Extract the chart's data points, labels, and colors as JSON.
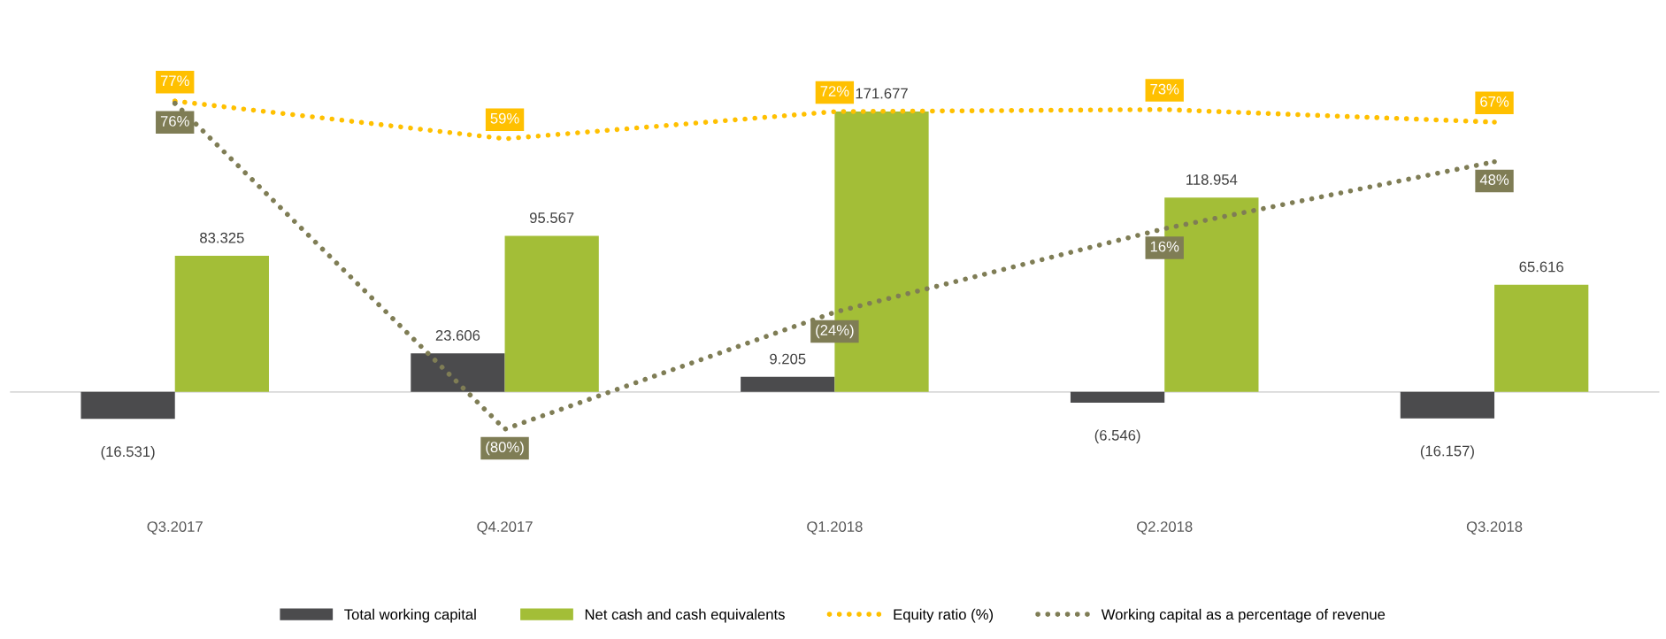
{
  "chart_data": {
    "type": "bar",
    "categories": [
      "Q3.2017",
      "Q4.2017",
      "Q1.2018",
      "Q2.2018",
      "Q3.2018"
    ],
    "series": [
      {
        "name": "Total working capital",
        "color": "#4b4b4d",
        "values": [
          -16.531,
          23.606,
          9.205,
          -6.546,
          -16.157
        ],
        "value_labels": [
          "(16.531)",
          "23.606",
          "9.205",
          "(6.546)",
          "(16.157)"
        ]
      },
      {
        "name": "Net cash and cash equivalents",
        "color": "#a3be37",
        "values": [
          83.325,
          95.567,
          171.677,
          118.954,
          65.616
        ],
        "value_labels": [
          "83.325",
          "95.567",
          "171.677",
          "118.954",
          "65.616"
        ]
      },
      {
        "name": "Equity ratio (%)",
        "type": "line",
        "axis": "y2",
        "line_style": "dotted",
        "color": "#ffc000",
        "values": [
          77,
          59,
          72,
          73,
          67
        ],
        "value_labels": [
          "77%",
          "59%",
          "72%",
          "73%",
          "67%"
        ]
      },
      {
        "name": "Working capital as a percentage of revenue",
        "type": "line",
        "axis": "y2",
        "line_style": "dotted",
        "color": "#7f7d55",
        "values": [
          76,
          -80,
          -24,
          16,
          48
        ],
        "value_labels": [
          "76%",
          "(80%)",
          "(24%)",
          "16%",
          "48%"
        ]
      }
    ],
    "tick_labels": "x",
    "legend": "bottom",
    "grid": false
  }
}
